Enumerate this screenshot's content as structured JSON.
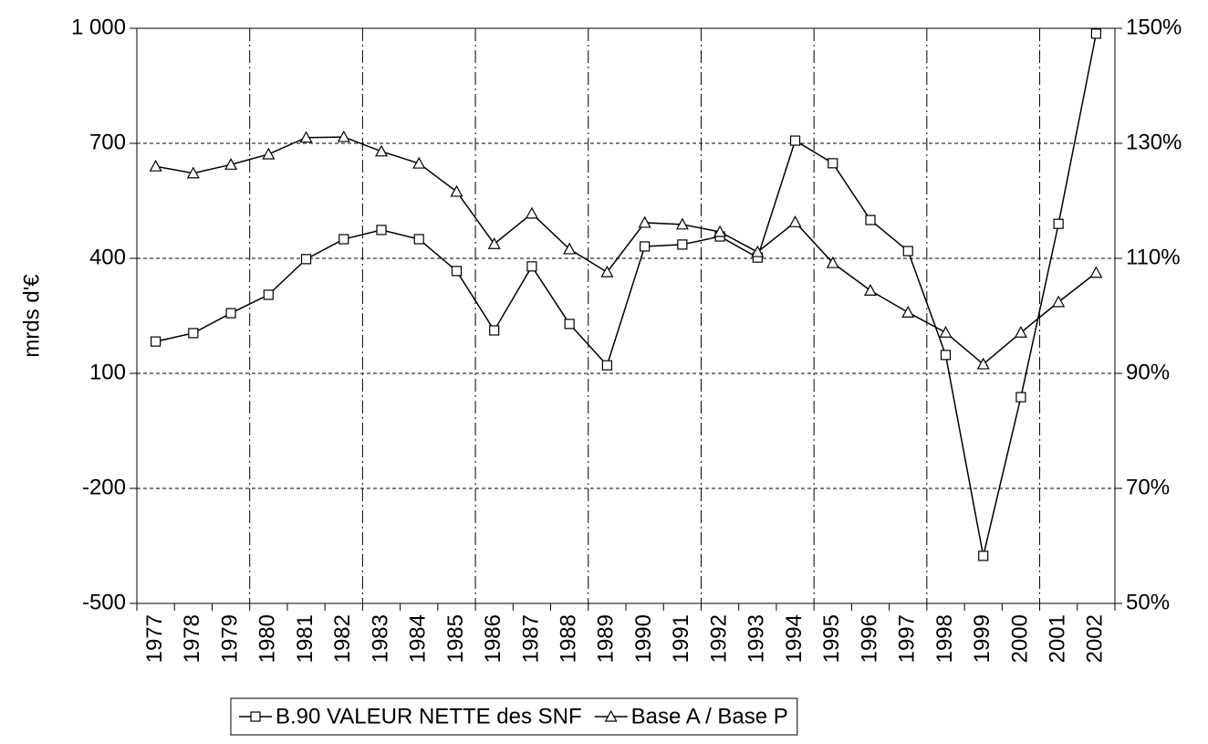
{
  "chart_data": {
    "type": "line",
    "y_label": "mrds d'€",
    "categories": [
      "1977",
      "1978",
      "1979",
      "1980",
      "1981",
      "1982",
      "1983",
      "1984",
      "1985",
      "1986",
      "1987",
      "1988",
      "1989",
      "1990",
      "1991",
      "1992",
      "1993",
      "1994",
      "1995",
      "1996",
      "1997",
      "1998",
      "1999",
      "2000",
      "2001",
      "2002"
    ],
    "series": [
      {
        "name": "B.90 VALEUR NETTE des SNF",
        "color": "#000000",
        "marker": "square",
        "values": [
          183,
          205,
          257,
          305,
          398,
          450,
          474,
          450,
          367,
          212,
          379,
          229,
          121,
          431,
          436,
          457,
          402,
          707,
          648,
          500,
          419,
          148,
          -376,
          38,
          490,
          986
        ]
      },
      {
        "name": "Base A / Base P",
        "color": "#000000",
        "marker": "triangle",
        "axis": "y2",
        "values": [
          126.0,
          124.8,
          126.3,
          128.1,
          131.0,
          131.1,
          128.6,
          126.5,
          121.6,
          112.5,
          117.8,
          111.6,
          107.6,
          116.2,
          115.9,
          114.6,
          111.1,
          116.3,
          109.2,
          104.4,
          100.6,
          97.1,
          91.6,
          97.1,
          102.4,
          107.5
        ]
      }
    ],
    "ylim": [
      -500,
      1000
    ],
    "yticks": [
      {
        "value": 1000,
        "label": "1 000"
      },
      700,
      400,
      100,
      -200,
      -500
    ],
    "y2lim": [
      50,
      150
    ],
    "y2ticks": [
      {
        "value": 150,
        "label": "150%"
      },
      {
        "value": 130,
        "label": "130%"
      },
      {
        "value": 110,
        "label": "110%"
      },
      {
        "value": 90,
        "label": "90%"
      },
      {
        "value": 70,
        "label": "70%"
      },
      {
        "value": 50,
        "label": "50%"
      }
    ],
    "grid": true,
    "legend": "bottom"
  }
}
